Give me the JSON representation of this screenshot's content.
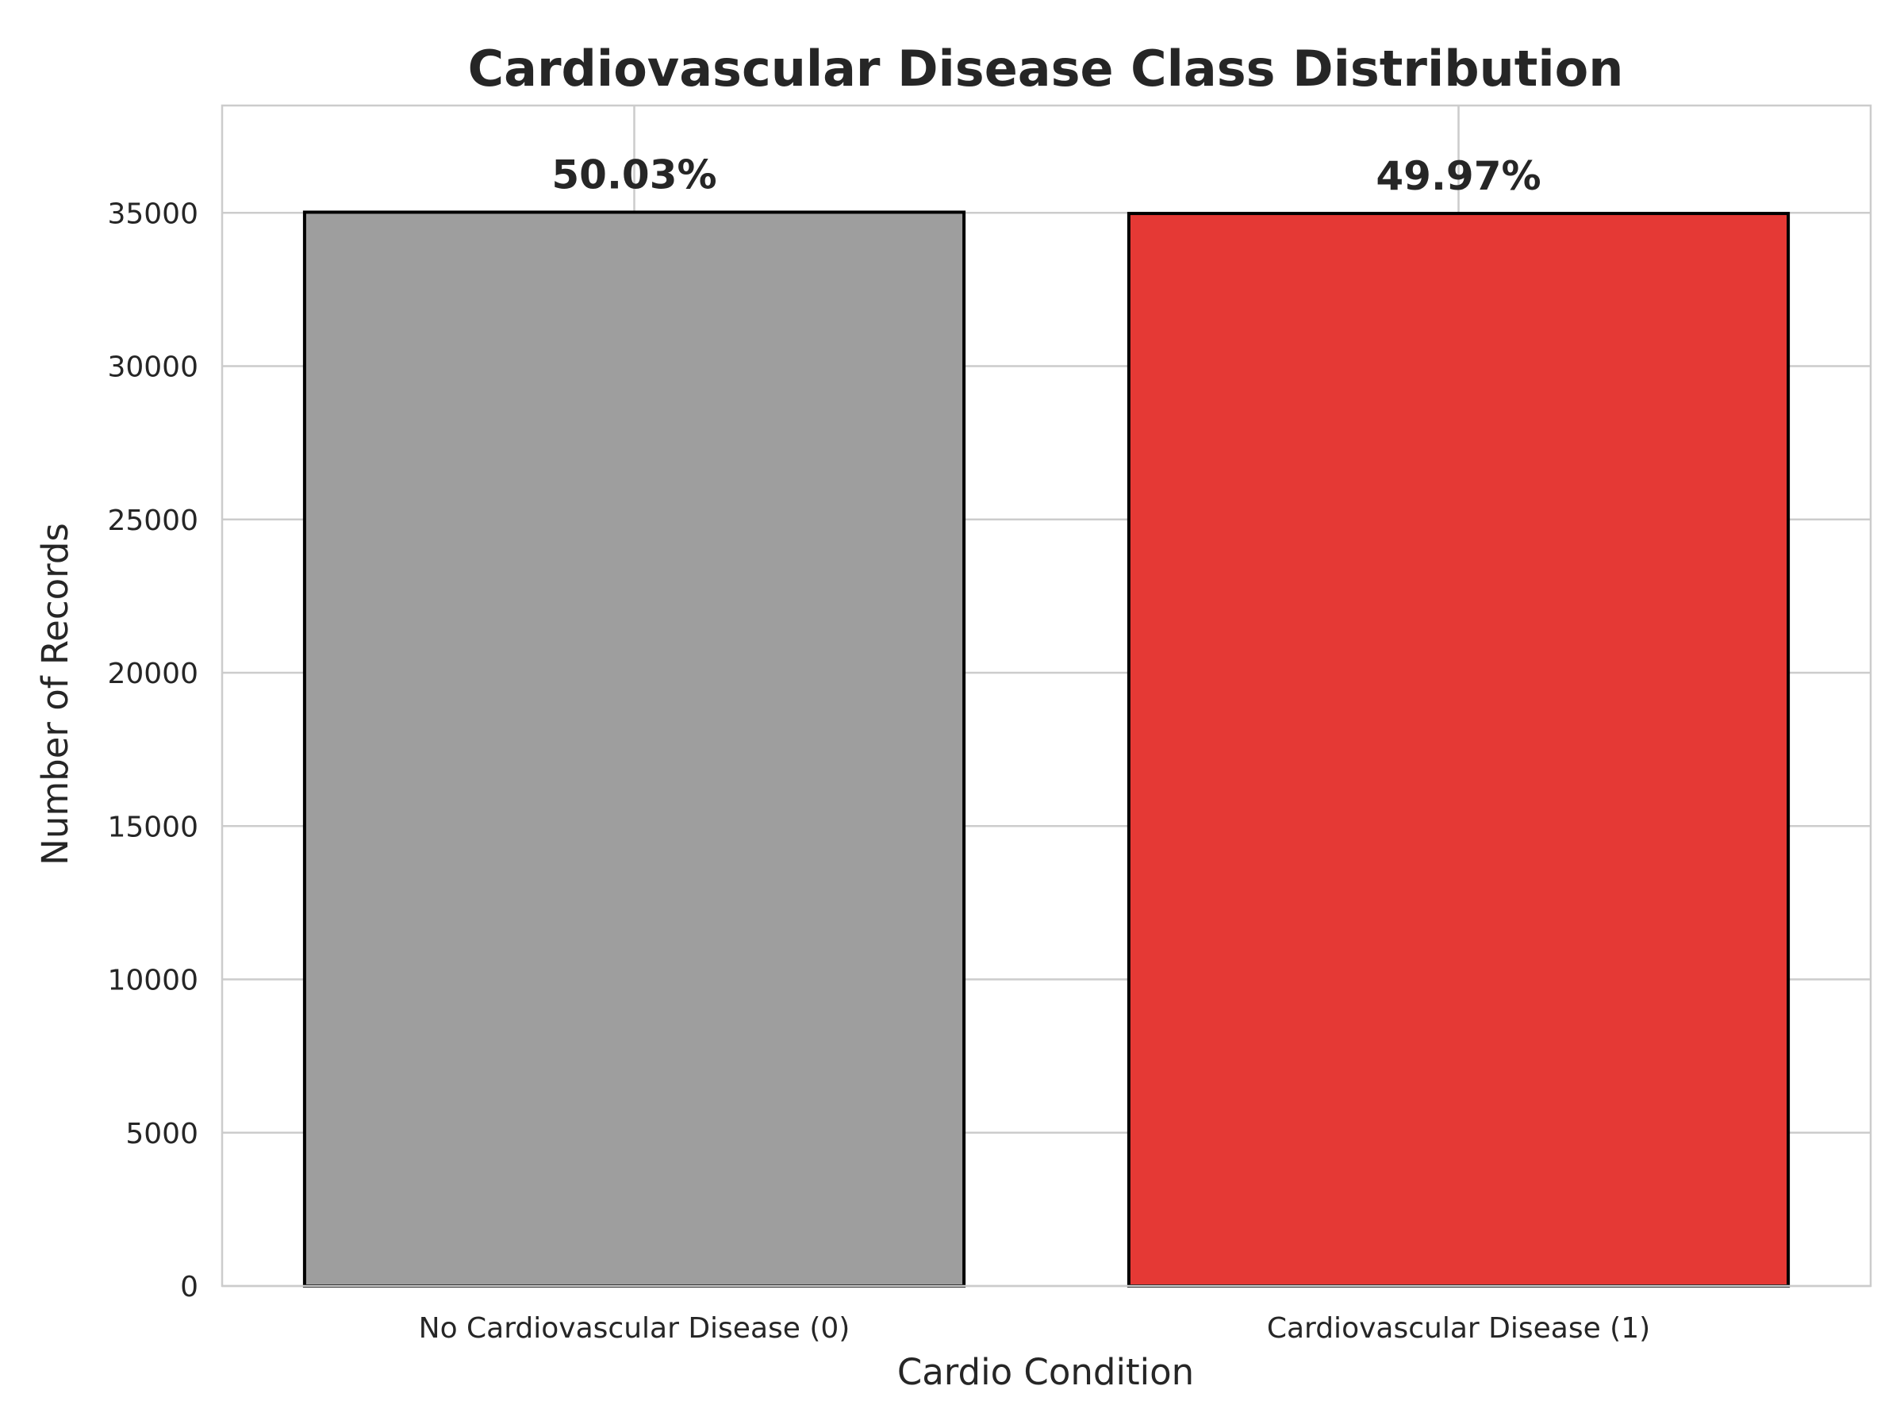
{
  "chart_data": {
    "type": "bar",
    "title": "Cardiovascular Disease Class Distribution",
    "xlabel": "Cardio Condition",
    "ylabel": "Number of Records",
    "categories": [
      "No Cardiovascular Disease (0)",
      "Cardiovascular Disease (1)"
    ],
    "values": [
      35021,
      34979
    ],
    "data_labels": [
      "50.03%",
      "49.97%"
    ],
    "colors": [
      "#9e9e9e",
      "#e53935"
    ],
    "ylim": [
      0,
      38500
    ],
    "yticks": [
      0,
      5000,
      10000,
      15000,
      20000,
      25000,
      30000,
      35000
    ],
    "ytick_labels": [
      "0",
      "5000",
      "10000",
      "15000",
      "20000",
      "25000",
      "30000",
      "35000"
    ],
    "grid": true,
    "legend": "none"
  }
}
